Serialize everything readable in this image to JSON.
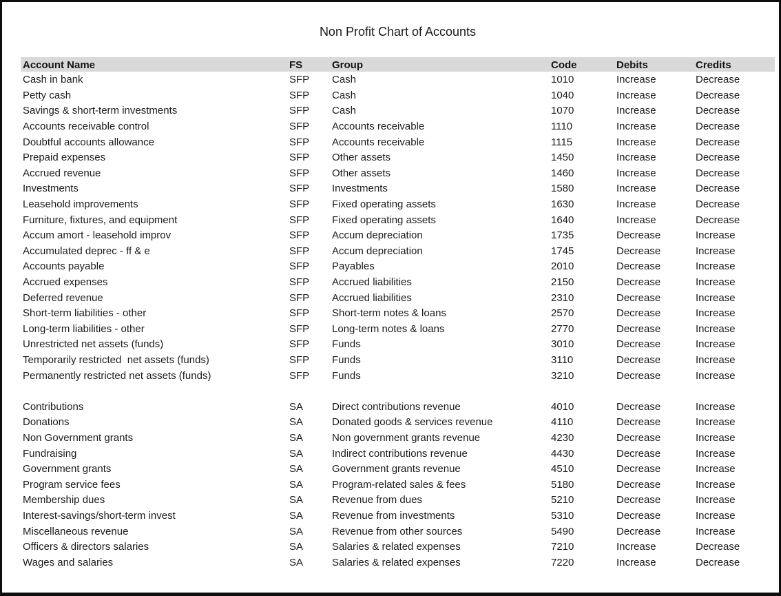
{
  "title": "Non Profit Chart of Accounts",
  "table": {
    "columns": [
      "Account Name",
      "FS",
      "Group",
      "Code",
      "Debits",
      "Credits"
    ],
    "rows": [
      [
        "Cash in bank",
        "SFP",
        "Cash",
        "1010",
        "Increase",
        "Decrease"
      ],
      [
        "Petty cash",
        "SFP",
        "Cash",
        "1040",
        "Increase",
        "Decrease"
      ],
      [
        "Savings & short-term investments",
        "SFP",
        "Cash",
        "1070",
        "Increase",
        "Decrease"
      ],
      [
        "Accounts receivable control",
        "SFP",
        "Accounts receivable",
        "1110",
        "Increase",
        "Decrease"
      ],
      [
        "Doubtful accounts allowance",
        "SFP",
        "Accounts receivable",
        "1115",
        "Increase",
        "Decrease"
      ],
      [
        "Prepaid expenses",
        "SFP",
        "Other assets",
        "1450",
        "Increase",
        "Decrease"
      ],
      [
        "Accrued revenue",
        "SFP",
        "Other assets",
        "1460",
        "Increase",
        "Decrease"
      ],
      [
        "Investments",
        "SFP",
        "Investments",
        "1580",
        "Increase",
        "Decrease"
      ],
      [
        "Leasehold improvements",
        "SFP",
        "Fixed operating assets",
        "1630",
        "Increase",
        "Decrease"
      ],
      [
        "Furniture, fixtures, and equipment",
        "SFP",
        "Fixed operating assets",
        "1640",
        "Increase",
        "Decrease"
      ],
      [
        "Accum amort - leasehold improv",
        "SFP",
        "Accum depreciation",
        "1735",
        "Decrease",
        "Increase"
      ],
      [
        "Accumulated deprec - ff & e",
        "SFP",
        "Accum depreciation",
        "1745",
        "Decrease",
        "Increase"
      ],
      [
        "Accounts payable",
        "SFP",
        "Payables",
        "2010",
        "Decrease",
        "Increase"
      ],
      [
        "Accrued expenses",
        "SFP",
        "Accrued liabilities",
        "2150",
        "Decrease",
        "Increase"
      ],
      [
        "Deferred revenue",
        "SFP",
        "Accrued liabilities",
        "2310",
        "Decrease",
        "Increase"
      ],
      [
        "Short-term liabilities - other",
        "SFP",
        "Short-term notes & loans",
        "2570",
        "Decrease",
        "Increase"
      ],
      [
        "Long-term liabilities - other",
        "SFP",
        "Long-term notes & loans",
        "2770",
        "Decrease",
        "Increase"
      ],
      [
        "Unrestricted net assets (funds)",
        "SFP",
        "Funds",
        "3010",
        "Decrease",
        "Increase"
      ],
      [
        "Temporarily restricted  net assets (funds)",
        "SFP",
        "Funds",
        "3110",
        "Decrease",
        "Increase"
      ],
      [
        "Permanently restricted net assets (funds)",
        "SFP",
        "Funds",
        "3210",
        "Decrease",
        "Increase"
      ],
      null,
      [
        "Contributions",
        "SA",
        "Direct contributions revenue",
        "4010",
        "Decrease",
        "Increase"
      ],
      [
        "Donations",
        "SA",
        "Donated goods & services revenue",
        "4110",
        "Decrease",
        "Increase"
      ],
      [
        "Non Government grants",
        "SA",
        "Non government grants revenue",
        "4230",
        "Decrease",
        "Increase"
      ],
      [
        "Fundraising",
        "SA",
        "Indirect contributions revenue",
        "4430",
        "Decrease",
        "Increase"
      ],
      [
        "Government grants",
        "SA",
        "Government grants revenue",
        "4510",
        "Decrease",
        "Increase"
      ],
      [
        "Program service fees",
        "SA",
        "Program-related sales & fees",
        "5180",
        "Decrease",
        "Increase"
      ],
      [
        "Membership dues",
        "SA",
        "Revenue from dues",
        "5210",
        "Decrease",
        "Increase"
      ],
      [
        "Interest-savings/short-term invest",
        "SA",
        "Revenue from investments",
        "5310",
        "Decrease",
        "Increase"
      ],
      [
        "Miscellaneous revenue",
        "SA",
        "Revenue from other sources",
        "5490",
        "Decrease",
        "Increase"
      ],
      [
        "Officers & directors salaries",
        "SA",
        "Salaries & related expenses",
        "7210",
        "Increase",
        "Decrease"
      ],
      [
        "Wages and salaries",
        "SA",
        "Salaries & related expenses",
        "7220",
        "Increase",
        "Decrease"
      ]
    ],
    "header_bg_color": "#d9d9d9",
    "text_color": "#1b1b1b"
  }
}
